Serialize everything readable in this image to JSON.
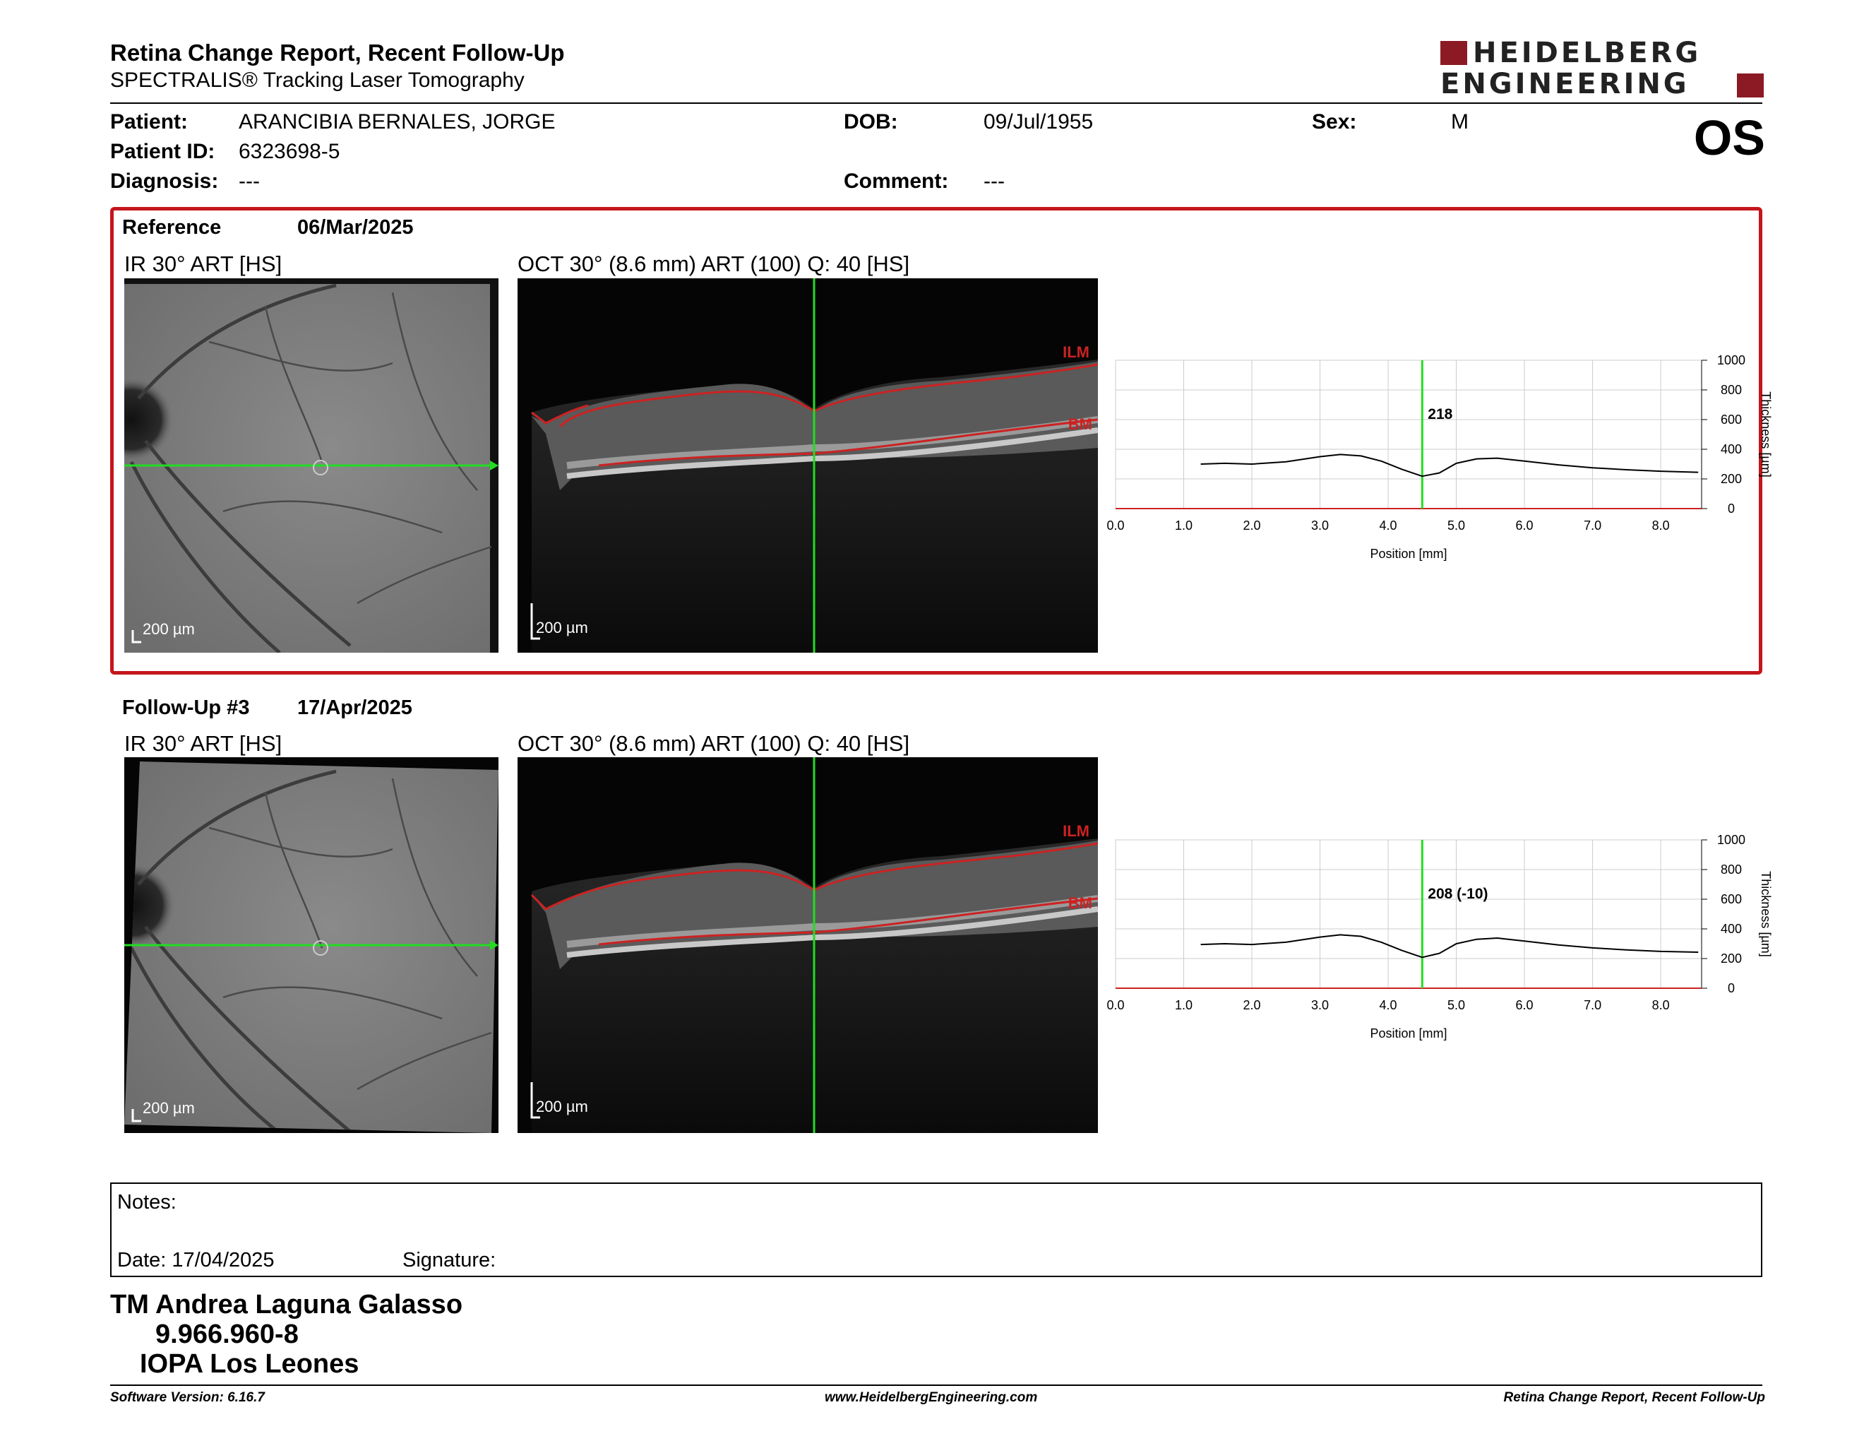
{
  "report": {
    "title": "Retina Change Report, Recent Follow-Up",
    "subtitle": "SPECTRALIS® Tracking Laser Tomography",
    "eye": "OS",
    "logo_line1": "HEIDELBERG",
    "logo_line2": "ENGINEERING"
  },
  "patient": {
    "name_label": "Patient:",
    "name": "ARANCIBIA BERNALES, JORGE",
    "id_label": "Patient ID:",
    "id": "6323698-5",
    "diagnosis_label": "Diagnosis:",
    "diagnosis": "---",
    "dob_label": "DOB:",
    "dob": "09/Jul/1955",
    "comment_label": "Comment:",
    "comment": "---",
    "sex_label": "Sex:",
    "sex": "M"
  },
  "colors": {
    "brand_red": "#8b1a24",
    "box_red": "#c4161c",
    "scan_green": "#22dd22",
    "layer_red": "#cc2222"
  },
  "reference": {
    "label": "Reference",
    "date": "06/Mar/2025",
    "ir_label": "IR 30° ART [HS]",
    "oct_label": "OCT 30° (8.6 mm) ART (100) Q: 40 [HS]",
    "scale_ir": "200 µm",
    "scale_oct": "200 µm",
    "ilm": "ILM",
    "bm": "BM"
  },
  "followup": {
    "label": "Follow-Up #3",
    "date": "17/Apr/2025",
    "ir_label": "IR 30° ART [HS]",
    "oct_label": "OCT 30° (8.6 mm) ART (100) Q: 40 [HS]",
    "scale_ir": "200 µm",
    "scale_oct": "200 µm",
    "ilm": "ILM",
    "bm": "BM"
  },
  "chart_data": [
    {
      "type": "line",
      "xlabel": "Position [mm]",
      "ylabel": "Thickness [µm]",
      "xlim": [
        0,
        8.6
      ],
      "ylim": [
        0,
        1000
      ],
      "x_ticks": [
        "0.0",
        "1.0",
        "2.0",
        "3.0",
        "4.0",
        "5.0",
        "6.0",
        "7.0",
        "8.0"
      ],
      "y_ticks": [
        "0",
        "200",
        "400",
        "600",
        "800",
        "1000"
      ],
      "cursor_x": 4.5,
      "cursor_label": "218",
      "grid": true,
      "x": [
        1.25,
        1.6,
        2.0,
        2.5,
        3.0,
        3.3,
        3.6,
        3.9,
        4.2,
        4.5,
        4.75,
        5.0,
        5.3,
        5.6,
        6.0,
        6.5,
        7.0,
        7.5,
        8.0,
        8.55
      ],
      "values": [
        300,
        305,
        300,
        315,
        350,
        365,
        355,
        320,
        265,
        218,
        240,
        305,
        335,
        340,
        320,
        295,
        275,
        262,
        252,
        245
      ]
    },
    {
      "type": "line",
      "xlabel": "Position [mm]",
      "ylabel": "Thickness [µm]",
      "xlim": [
        0,
        8.6
      ],
      "ylim": [
        0,
        1000
      ],
      "x_ticks": [
        "0.0",
        "1.0",
        "2.0",
        "3.0",
        "4.0",
        "5.0",
        "6.0",
        "7.0",
        "8.0"
      ],
      "y_ticks": [
        "0",
        "200",
        "400",
        "600",
        "800",
        "1000"
      ],
      "cursor_x": 4.5,
      "cursor_label": "208 (-10)",
      "grid": true,
      "x": [
        1.25,
        1.6,
        2.0,
        2.5,
        3.0,
        3.3,
        3.6,
        3.9,
        4.2,
        4.5,
        4.75,
        5.0,
        5.3,
        5.6,
        6.0,
        6.5,
        7.0,
        7.5,
        8.0,
        8.55
      ],
      "values": [
        295,
        300,
        295,
        310,
        345,
        360,
        350,
        310,
        255,
        208,
        235,
        300,
        330,
        338,
        318,
        292,
        272,
        258,
        248,
        243
      ]
    }
  ],
  "notes": {
    "label": "Notes:",
    "date_label": "Date: 17/04/2025",
    "signature_label": "Signature:"
  },
  "signer": {
    "name": "TM Andrea Laguna Galasso",
    "rut": "9.966.960-8",
    "institution": "IOPA Los Leones"
  },
  "footer": {
    "version": "Software Version: 6.16.7",
    "website": "www.HeidelbergEngineering.com",
    "report_name": "Retina Change Report, Recent Follow-Up"
  }
}
